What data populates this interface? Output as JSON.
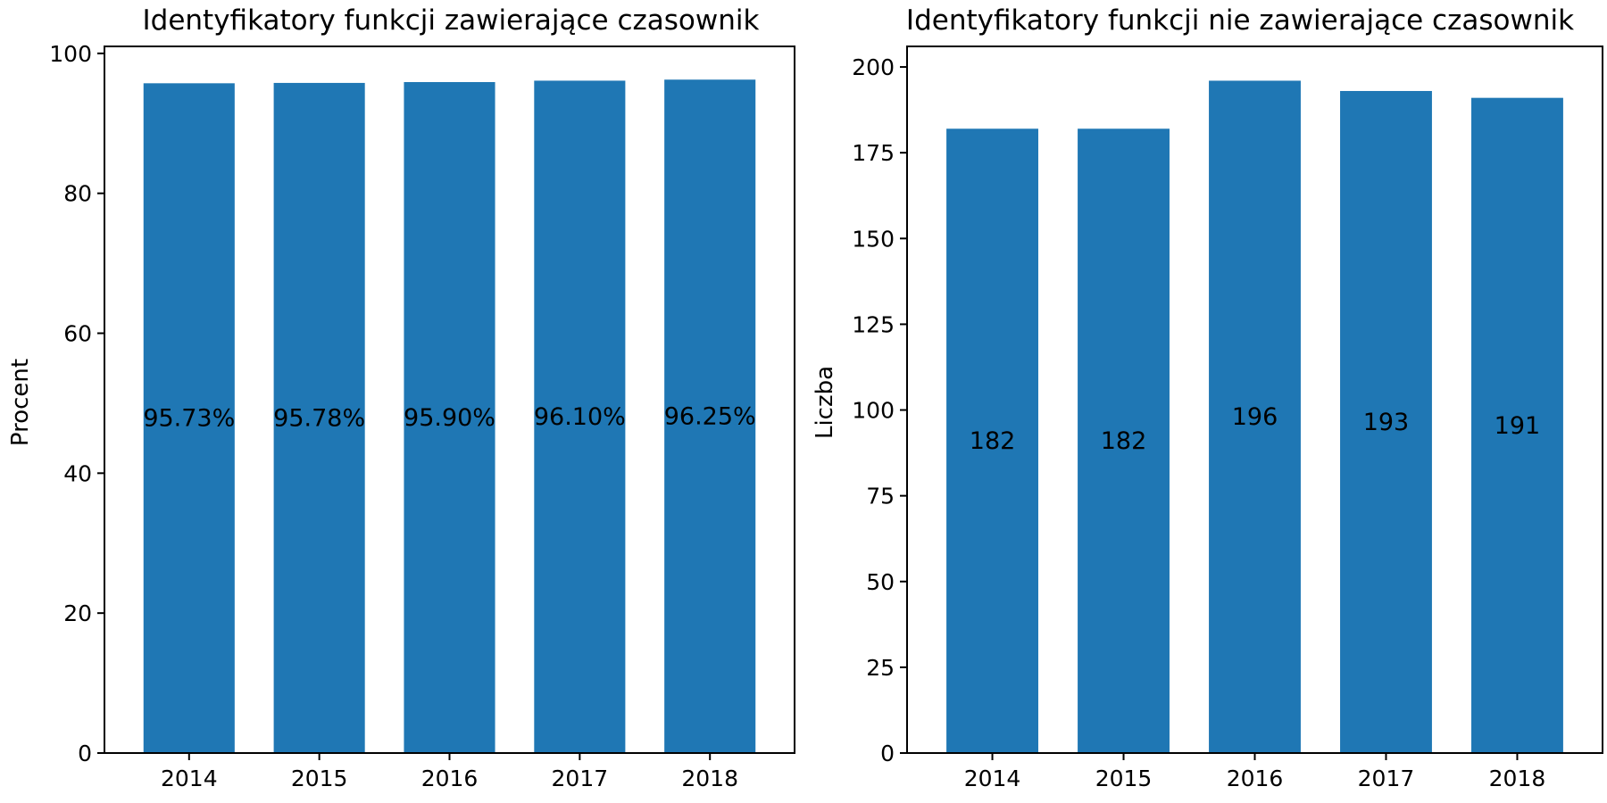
{
  "chart_data": [
    {
      "type": "bar",
      "title": "Identyfikatory funkcji zawierające czasownik",
      "xlabel": "",
      "ylabel": "Procent",
      "categories": [
        "2014",
        "2015",
        "2016",
        "2017",
        "2018"
      ],
      "values": [
        95.73,
        95.78,
        95.9,
        96.1,
        96.25
      ],
      "data_labels": [
        "95.73%",
        "95.78%",
        "95.90%",
        "96.10%",
        "96.25%"
      ],
      "ylim": [
        0,
        101
      ],
      "yticks": [
        0,
        20,
        40,
        60,
        80,
        100
      ],
      "grid": false,
      "color": "#1f77b4"
    },
    {
      "type": "bar",
      "title": "Identyfikatory funkcji nie zawierające czasownik",
      "xlabel": "",
      "ylabel": "Liczba",
      "categories": [
        "2014",
        "2015",
        "2016",
        "2017",
        "2018"
      ],
      "values": [
        182,
        182,
        196,
        193,
        191
      ],
      "data_labels": [
        "182",
        "182",
        "196",
        "193",
        "191"
      ],
      "ylim": [
        0,
        206
      ],
      "yticks": [
        0,
        25,
        50,
        75,
        100,
        125,
        150,
        175,
        200
      ],
      "grid": false,
      "color": "#1f77b4"
    }
  ]
}
